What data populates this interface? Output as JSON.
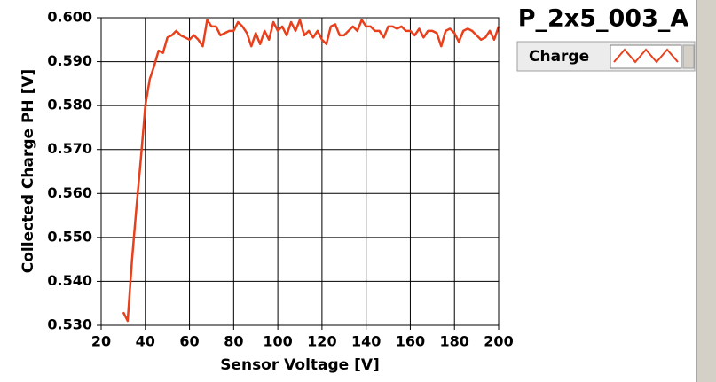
{
  "chart_data": {
    "type": "line",
    "title": "P_2x5_003_A",
    "x_label": "Sensor Voltage [V]",
    "y_label": "Collected Charge PH [V]",
    "x": [
      30,
      32,
      34,
      36,
      38,
      40,
      42,
      44,
      46,
      48,
      50,
      52,
      54,
      56,
      58,
      60,
      62,
      64,
      66,
      68,
      70,
      72,
      74,
      76,
      78,
      80,
      82,
      84,
      86,
      88,
      90,
      92,
      94,
      96,
      98,
      100,
      102,
      104,
      106,
      108,
      110,
      112,
      114,
      116,
      118,
      120,
      122,
      124,
      126,
      128,
      130,
      132,
      134,
      136,
      138,
      140,
      142,
      144,
      146,
      148,
      150,
      152,
      154,
      156,
      158,
      160,
      162,
      164,
      166,
      168,
      170,
      172,
      174,
      176,
      178,
      180,
      182,
      184,
      186,
      188,
      190,
      192,
      194,
      196,
      198,
      200
    ],
    "series": [
      {
        "name": "Charge",
        "color": "#e8401c",
        "values": [
          0.533,
          0.531,
          0.545,
          0.557,
          0.568,
          0.58,
          0.586,
          0.589,
          0.5925,
          0.592,
          0.5955,
          0.596,
          0.597,
          0.596,
          0.5955,
          0.595,
          0.596,
          0.595,
          0.5935,
          0.5995,
          0.598,
          0.598,
          0.596,
          0.5965,
          0.597,
          0.597,
          0.599,
          0.598,
          0.5965,
          0.5935,
          0.5965,
          0.594,
          0.597,
          0.595,
          0.599,
          0.597,
          0.598,
          0.596,
          0.599,
          0.597,
          0.5995,
          0.596,
          0.597,
          0.5955,
          0.597,
          0.595,
          0.594,
          0.598,
          0.5985,
          0.596,
          0.596,
          0.597,
          0.598,
          0.597,
          0.5995,
          0.598,
          0.598,
          0.597,
          0.597,
          0.5955,
          0.598,
          0.598,
          0.5975,
          0.598,
          0.597,
          0.597,
          0.596,
          0.5975,
          0.5955,
          0.597,
          0.597,
          0.5965,
          0.5935,
          0.597,
          0.5975,
          0.5965,
          0.5945,
          0.597,
          0.5975,
          0.597,
          0.596,
          0.595,
          0.5955,
          0.597,
          0.595,
          0.598
        ]
      }
    ],
    "xlim": [
      20,
      200
    ],
    "ylim": [
      0.53,
      0.6
    ],
    "xticks": [
      20,
      40,
      60,
      80,
      100,
      120,
      140,
      160,
      180,
      200
    ],
    "yticks": [
      {
        "value": 0.53,
        "label": "0.530"
      },
      {
        "value": 0.54,
        "label": "0.540"
      },
      {
        "value": 0.55,
        "label": "0.550"
      },
      {
        "value": 0.56,
        "label": "0.560"
      },
      {
        "value": 0.57,
        "label": "0.570"
      },
      {
        "value": 0.58,
        "label": "0.580"
      },
      {
        "value": 0.59,
        "label": "0.590"
      },
      {
        "value": 0.6,
        "label": "0.600"
      }
    ],
    "grid": true,
    "legend": "upper right"
  }
}
